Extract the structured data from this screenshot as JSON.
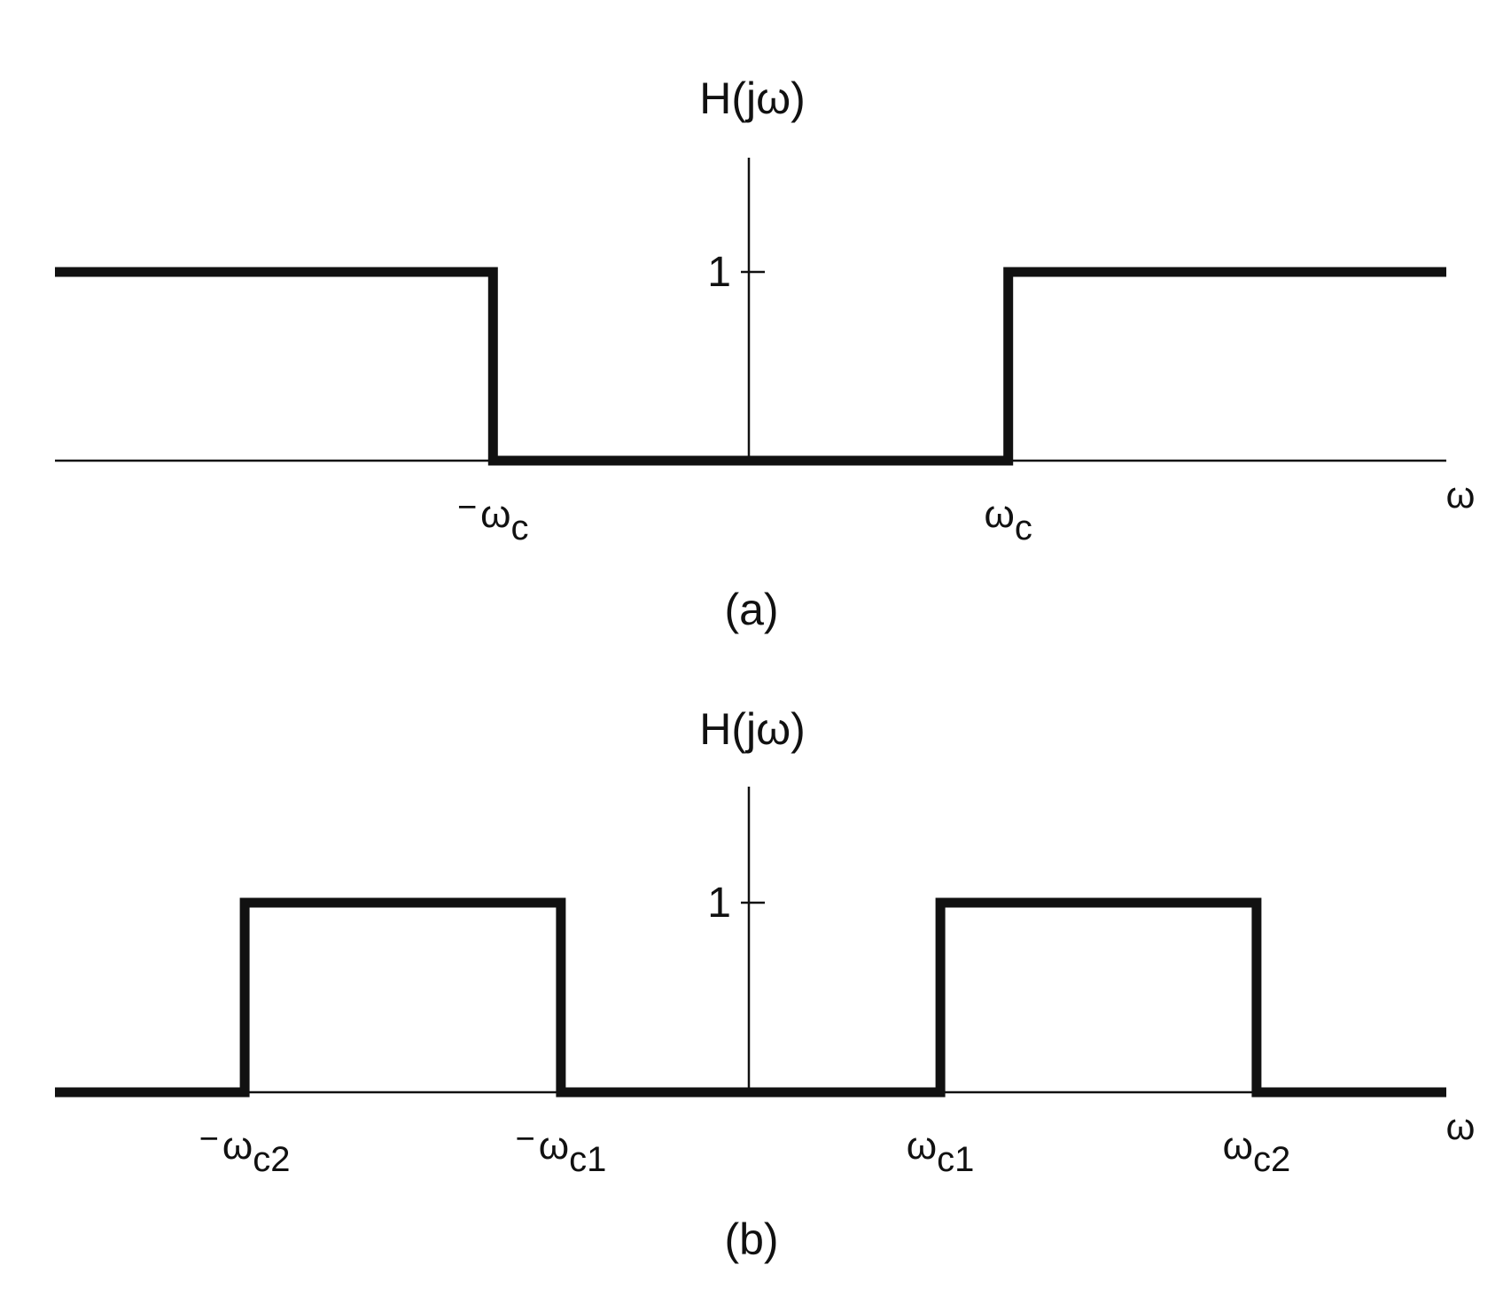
{
  "chart_data": [
    {
      "type": "line",
      "caption": "(a)",
      "ylabel": "H(jω)",
      "xlabel": "ω",
      "y_tick_label": "1",
      "x_ticks": [
        {
          "sign": "−",
          "base": "ω",
          "sub": "c",
          "value": -1
        },
        {
          "sign": "",
          "base": "ω",
          "sub": "c",
          "value": 1
        }
      ],
      "x": [
        -2.7,
        -1,
        -1,
        1,
        1,
        2.7
      ],
      "y": [
        1,
        1,
        0,
        0,
        1,
        1
      ],
      "xlim": [
        -2.7,
        2.7
      ],
      "ylim": [
        0,
        1.6
      ]
    },
    {
      "type": "line",
      "caption": "(b)",
      "ylabel": "H(jω)",
      "xlabel": "ω",
      "y_tick_label": "1",
      "x_ticks": [
        {
          "sign": "−",
          "base": "ω",
          "sub": "c2",
          "value": -2
        },
        {
          "sign": "−",
          "base": "ω",
          "sub": "c1",
          "value": -0.75
        },
        {
          "sign": "",
          "base": "ω",
          "sub": "c1",
          "value": 0.75
        },
        {
          "sign": "",
          "base": "ω",
          "sub": "c2",
          "value": 2
        }
      ],
      "x": [
        -2.75,
        -2,
        -2,
        -0.75,
        -0.75,
        0.75,
        0.75,
        2,
        2,
        2.75
      ],
      "y": [
        0,
        0,
        1,
        1,
        0,
        0,
        1,
        1,
        0,
        0
      ],
      "xlim": [
        -2.75,
        2.75
      ],
      "ylim": [
        0,
        1.6
      ]
    }
  ]
}
